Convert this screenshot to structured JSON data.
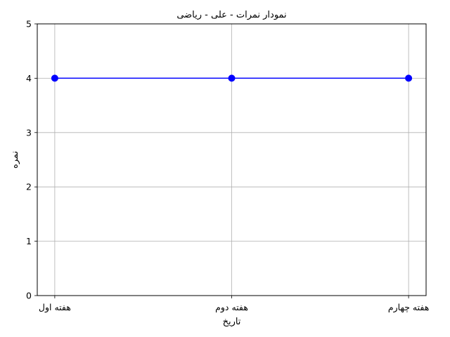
{
  "chart_data": {
    "type": "line",
    "title": "نمودار نمرات - علی - ریاضی",
    "xlabel": "تاریخ",
    "ylabel": "نمره",
    "categories": [
      "هفته اول",
      "هفته دوم",
      "هفته چهارم"
    ],
    "series": [
      {
        "values": [
          4,
          4,
          4
        ],
        "color": "#0000ff",
        "marker": "circle"
      }
    ],
    "ylim": [
      0,
      5
    ],
    "yticks": [
      0,
      1,
      2,
      3,
      4,
      5
    ],
    "grid": true,
    "legend": "none"
  }
}
